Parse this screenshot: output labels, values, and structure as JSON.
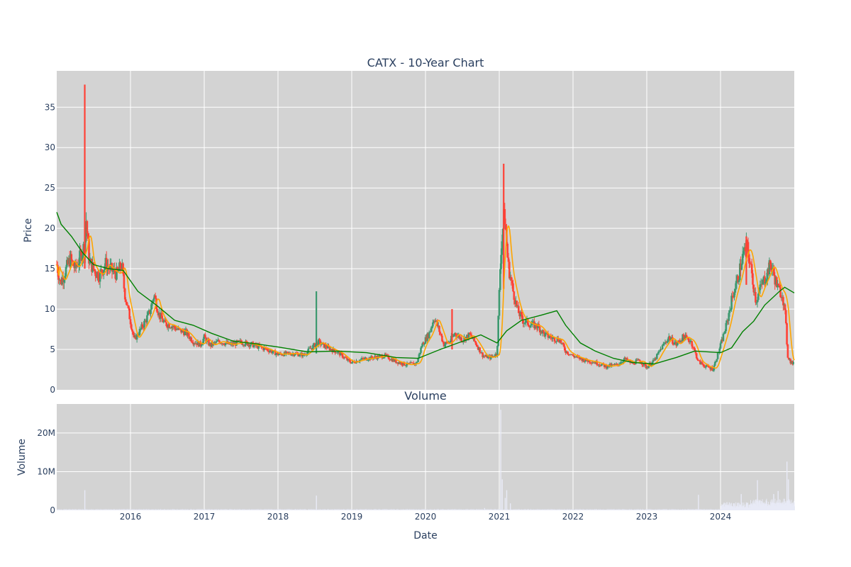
{
  "chart_data": [
    {
      "type": "candlestick",
      "title": "CATX - 10-Year Chart",
      "ylabel": "Price",
      "ylim": [
        0,
        39.5
      ],
      "yticks": [
        0,
        5,
        10,
        15,
        20,
        25,
        30,
        35
      ],
      "grid": true,
      "colors": {
        "increasing": "#3d9970",
        "decreasing": "#ff4136",
        "ma_fast": "#ffa500",
        "ma_slow": "#008000",
        "plot_bg": "#d3d3d3"
      },
      "price_path": [
        [
          2015.0,
          15.5
        ],
        [
          2015.05,
          13.2
        ],
        [
          2015.12,
          14.8
        ],
        [
          2015.18,
          16.2
        ],
        [
          2015.25,
          15.0
        ],
        [
          2015.32,
          16.5
        ],
        [
          2015.38,
          18.0
        ],
        [
          2015.4,
          21.0
        ],
        [
          2015.44,
          16.0
        ],
        [
          2015.52,
          14.6
        ],
        [
          2015.58,
          14.2
        ],
        [
          2015.66,
          15.6
        ],
        [
          2015.74,
          14.8
        ],
        [
          2015.82,
          14.3
        ],
        [
          2015.88,
          15.6
        ],
        [
          2015.92,
          12.0
        ],
        [
          2016.0,
          8.5
        ],
        [
          2016.05,
          6.2
        ],
        [
          2016.12,
          7.2
        ],
        [
          2016.2,
          8.5
        ],
        [
          2016.26,
          9.6
        ],
        [
          2016.32,
          11.8
        ],
        [
          2016.38,
          9.5
        ],
        [
          2016.46,
          8.2
        ],
        [
          2016.55,
          8.0
        ],
        [
          2016.65,
          7.4
        ],
        [
          2016.75,
          7.1
        ],
        [
          2016.85,
          6.0
        ],
        [
          2016.95,
          5.6
        ],
        [
          2017.0,
          6.5
        ],
        [
          2017.08,
          5.5
        ],
        [
          2017.2,
          6.0
        ],
        [
          2017.35,
          5.6
        ],
        [
          2017.5,
          5.9
        ],
        [
          2017.65,
          5.6
        ],
        [
          2017.85,
          5.0
        ],
        [
          2018.0,
          4.4
        ],
        [
          2018.2,
          4.5
        ],
        [
          2018.35,
          4.3
        ],
        [
          2018.45,
          5.2
        ],
        [
          2018.55,
          5.9
        ],
        [
          2018.62,
          5.5
        ],
        [
          2018.72,
          5.0
        ],
        [
          2018.82,
          4.6
        ],
        [
          2018.95,
          3.6
        ],
        [
          2019.0,
          3.4
        ],
        [
          2019.15,
          3.8
        ],
        [
          2019.3,
          4.0
        ],
        [
          2019.45,
          4.2
        ],
        [
          2019.6,
          3.5
        ],
        [
          2019.75,
          3.1
        ],
        [
          2019.88,
          3.3
        ],
        [
          2019.95,
          5.5
        ],
        [
          2020.05,
          7.0
        ],
        [
          2020.12,
          9.0
        ],
        [
          2020.18,
          7.5
        ],
        [
          2020.25,
          5.6
        ],
        [
          2020.32,
          5.9
        ],
        [
          2020.4,
          7.0
        ],
        [
          2020.5,
          6.2
        ],
        [
          2020.6,
          6.8
        ],
        [
          2020.68,
          5.8
        ],
        [
          2020.78,
          4.2
        ],
        [
          2020.88,
          4.0
        ],
        [
          2020.97,
          4.5
        ],
        [
          2021.02,
          17.0
        ],
        [
          2021.07,
          22.0
        ],
        [
          2021.12,
          15.5
        ],
        [
          2021.18,
          12.5
        ],
        [
          2021.25,
          9.8
        ],
        [
          2021.32,
          8.6
        ],
        [
          2021.42,
          8.1
        ],
        [
          2021.52,
          7.9
        ],
        [
          2021.62,
          6.8
        ],
        [
          2021.72,
          6.4
        ],
        [
          2021.82,
          6.2
        ],
        [
          2021.9,
          4.8
        ],
        [
          2022.0,
          4.2
        ],
        [
          2022.15,
          3.7
        ],
        [
          2022.3,
          3.4
        ],
        [
          2022.45,
          2.9
        ],
        [
          2022.6,
          3.1
        ],
        [
          2022.7,
          3.8
        ],
        [
          2022.8,
          3.3
        ],
        [
          2022.9,
          3.6
        ],
        [
          2023.0,
          2.8
        ],
        [
          2023.1,
          3.6
        ],
        [
          2023.2,
          5.2
        ],
        [
          2023.3,
          6.5
        ],
        [
          2023.4,
          5.6
        ],
        [
          2023.5,
          6.6
        ],
        [
          2023.6,
          6.0
        ],
        [
          2023.7,
          3.5
        ],
        [
          2023.8,
          2.9
        ],
        [
          2023.9,
          2.6
        ],
        [
          2024.0,
          5.5
        ],
        [
          2024.08,
          8.0
        ],
        [
          2024.16,
          11.5
        ],
        [
          2024.24,
          14.0
        ],
        [
          2024.3,
          16.5
        ],
        [
          2024.36,
          17.8
        ],
        [
          2024.42,
          14.5
        ],
        [
          2024.48,
          11.0
        ],
        [
          2024.55,
          12.8
        ],
        [
          2024.62,
          14.2
        ],
        [
          2024.68,
          15.6
        ],
        [
          2024.73,
          14.0
        ],
        [
          2024.78,
          12.5
        ],
        [
          2024.84,
          11.8
        ],
        [
          2024.88,
          9.0
        ],
        [
          2024.91,
          4.2
        ],
        [
          2024.95,
          3.5
        ],
        [
          2025.0,
          3.1
        ]
      ],
      "spikes": [
        {
          "x": 2015.38,
          "high": 37.8,
          "low": 15.0
        },
        {
          "x": 2018.52,
          "high": 12.2,
          "low": 4.5
        },
        {
          "x": 2021.06,
          "high": 28.0,
          "low": 12.5
        },
        {
          "x": 2020.36,
          "high": 10.0,
          "low": 5.0
        },
        {
          "x": 2024.35,
          "high": 19.0,
          "low": 13.0
        }
      ],
      "ma_slow": [
        [
          2015.0,
          22.0
        ],
        [
          2015.06,
          20.5
        ],
        [
          2015.2,
          19.0
        ],
        [
          2015.35,
          17.0
        ],
        [
          2015.5,
          15.5
        ],
        [
          2015.7,
          15.0
        ],
        [
          2015.9,
          14.8
        ],
        [
          2016.1,
          12.2
        ],
        [
          2016.35,
          10.5
        ],
        [
          2016.6,
          8.6
        ],
        [
          2016.85,
          8.0
        ],
        [
          2017.1,
          7.0
        ],
        [
          2017.4,
          6.0
        ],
        [
          2017.7,
          5.7
        ],
        [
          2018.0,
          5.3
        ],
        [
          2018.4,
          4.7
        ],
        [
          2018.8,
          4.8
        ],
        [
          2019.2,
          4.6
        ],
        [
          2019.6,
          4.0
        ],
        [
          2019.9,
          3.9
        ],
        [
          2020.2,
          5.0
        ],
        [
          2020.5,
          6.0
        ],
        [
          2020.75,
          6.8
        ],
        [
          2020.97,
          5.8
        ],
        [
          2021.1,
          7.3
        ],
        [
          2021.3,
          8.6
        ],
        [
          2021.55,
          9.2
        ],
        [
          2021.78,
          9.8
        ],
        [
          2021.9,
          8.0
        ],
        [
          2022.1,
          5.8
        ],
        [
          2022.3,
          4.8
        ],
        [
          2022.55,
          3.9
        ],
        [
          2022.8,
          3.4
        ],
        [
          2023.1,
          3.2
        ],
        [
          2023.4,
          4.0
        ],
        [
          2023.65,
          4.8
        ],
        [
          2024.0,
          4.6
        ],
        [
          2024.15,
          5.2
        ],
        [
          2024.3,
          7.2
        ],
        [
          2024.45,
          8.5
        ],
        [
          2024.6,
          10.5
        ],
        [
          2024.8,
          12.2
        ],
        [
          2024.87,
          12.7
        ],
        [
          2025.0,
          12.0
        ]
      ],
      "ma_fast_lag": 0.06
    },
    {
      "type": "bar",
      "title": "Volume",
      "ylabel": "Volume",
      "xlabel": "Date",
      "ylim": [
        0,
        27.5
      ],
      "yticks": [
        0,
        10,
        20
      ],
      "ytick_labels": [
        "0",
        "10M",
        "20M"
      ],
      "xlim": [
        2015.0,
        2025.0
      ],
      "xticks": [
        2016,
        2017,
        2018,
        2019,
        2020,
        2021,
        2022,
        2023,
        2024
      ],
      "xtick_labels": [
        "2016",
        "2017",
        "2018",
        "2019",
        "2020",
        "2021",
        "2022",
        "2023",
        "2024"
      ],
      "color": "#e8eaf6",
      "base_millions": 0.2,
      "spikes_millions": [
        [
          2015.38,
          5.2
        ],
        [
          2018.52,
          3.8
        ],
        [
          2020.8,
          0.6
        ],
        [
          2021.02,
          26.0
        ],
        [
          2021.04,
          8.0
        ],
        [
          2021.08,
          3.2
        ],
        [
          2021.1,
          5.2
        ],
        [
          2021.15,
          1.8
        ],
        [
          2023.7,
          4.0
        ],
        [
          2024.28,
          4.2
        ],
        [
          2024.5,
          7.8
        ],
        [
          2024.72,
          4.2
        ],
        [
          2024.78,
          5.0
        ],
        [
          2024.9,
          12.6
        ],
        [
          2024.92,
          8.0
        ]
      ]
    }
  ]
}
